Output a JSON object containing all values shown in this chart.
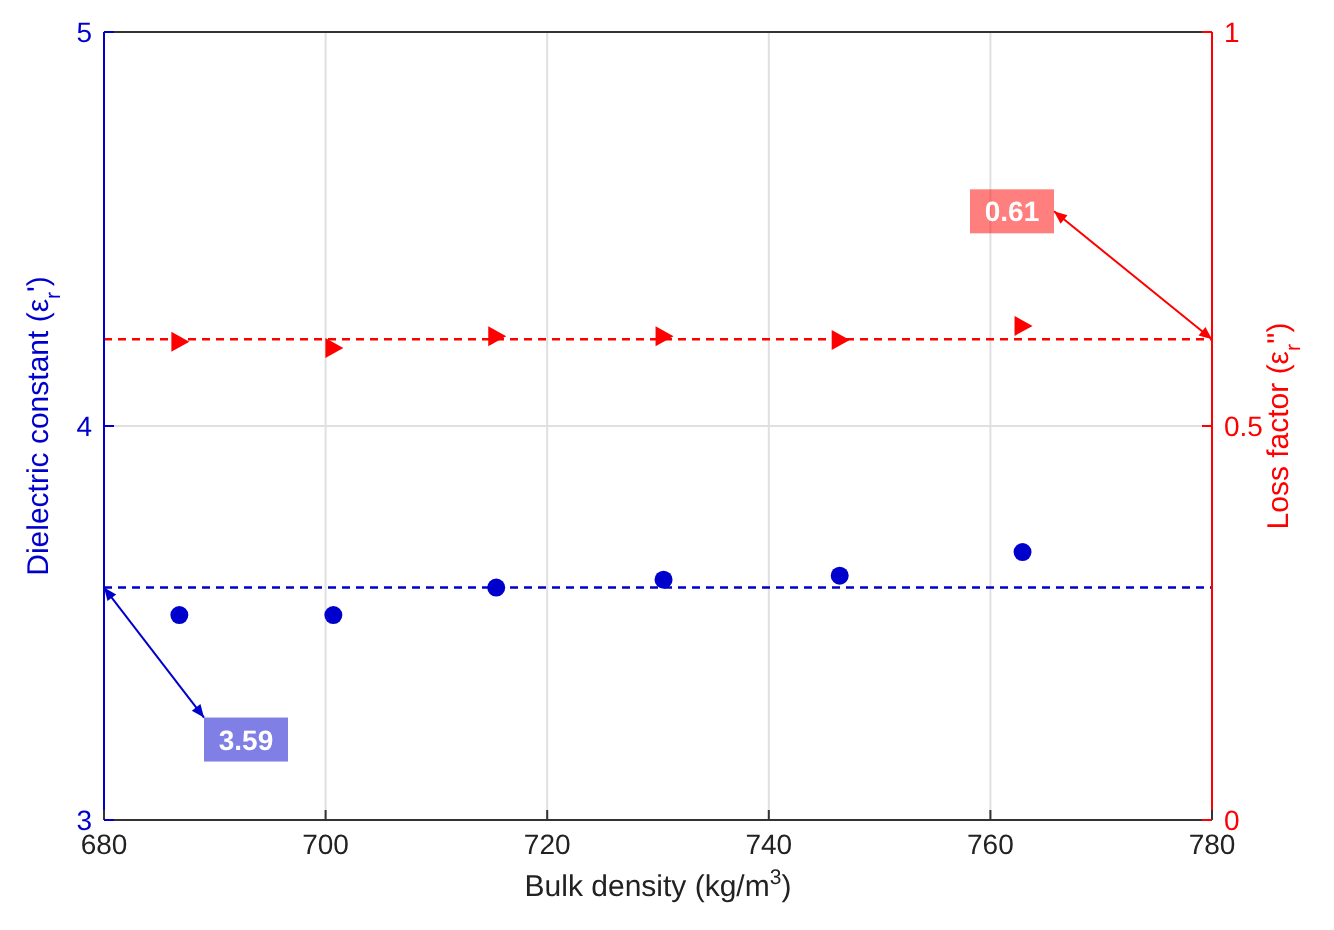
{
  "chart_data": {
    "type": "scatter",
    "xlabel": "Bulk density (kg/m$^{3}$)",
    "ylabel": "Dielectric constant (ε$_{r}$')",
    "y2label": "Loss factor (ε$_{r}$'')",
    "x": [
      686.8,
      700.7,
      715.4,
      730.5,
      746.4,
      762.9
    ],
    "series": [
      {
        "color": "#0000cc",
        "marker": "circle",
        "values": [
          3.52,
          3.52,
          3.59,
          3.61,
          3.62,
          3.68
        ]
      },
      {
        "color": "#ff0000",
        "marker": "triangle",
        "axis": "y2",
        "values": [
          0.607,
          0.599,
          0.614,
          0.614,
          0.609,
          0.627
        ]
      }
    ],
    "xlim": [
      680,
      780
    ],
    "xticks": [
      680,
      700,
      720,
      740,
      760,
      780
    ],
    "ylim": [
      3,
      5
    ],
    "yticks": [
      3,
      4,
      5
    ],
    "y2lim": [
      0,
      1
    ],
    "y2ticks": [
      0,
      0.5,
      1
    ],
    "grid": true,
    "ref_lines": [
      {
        "axis": "y",
        "value": 3.59,
        "label": "3.59",
        "color": "#0000cc",
        "line_style": "dashed"
      },
      {
        "axis": "y2",
        "value": 0.61,
        "label": "0.61",
        "color": "#ff0000",
        "line_style": "dashed"
      }
    ]
  }
}
